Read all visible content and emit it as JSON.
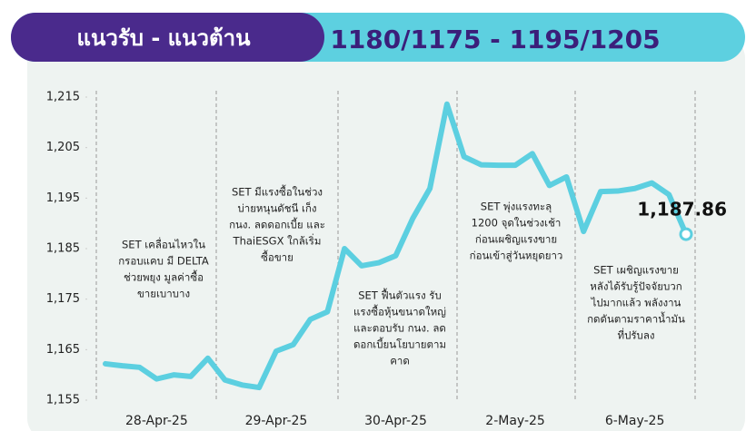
{
  "header": {
    "title": "แนวรับ - แนวต้าน",
    "levels": "1180/1175 - 1195/1205"
  },
  "chart_data": {
    "type": "line",
    "categories": [
      null,
      null,
      null,
      "28-Apr-25",
      null,
      null,
      null,
      null,
      null,
      null,
      "29-Apr-25",
      null,
      null,
      null,
      null,
      null,
      null,
      "30-Apr-25",
      null,
      null,
      null,
      null,
      null,
      null,
      "2-May-25",
      null,
      null,
      null,
      null,
      null,
      null,
      "6-May-25",
      null,
      null,
      null
    ],
    "values": [
      1162.2,
      1161.8,
      1161.5,
      1159.2,
      1160,
      1159.7,
      1163.3,
      1159,
      1158,
      1157.5,
      1164.7,
      1166,
      1171,
      1172.5,
      1185,
      1181.6,
      1182.2,
      1183.6,
      1191,
      1196.9,
      1213.6,
      1203.2,
      1201.6,
      1201.5,
      1201.5,
      1203.8,
      1197.5,
      1199.2,
      1188.4,
      1196.3,
      1196.4,
      1196.9,
      1198,
      1195.7,
      1187.86
    ],
    "value_labels": [
      null,
      null,
      null,
      null,
      null,
      null,
      null,
      null,
      null,
      null,
      null,
      null,
      null,
      null,
      null,
      null,
      null,
      null,
      null,
      null,
      null,
      null,
      null,
      null,
      null,
      null,
      null,
      null,
      null,
      null,
      null,
      null,
      null,
      null,
      "1,187.86"
    ],
    "color": "#5ccfe0",
    "ylim": [
      1155,
      1215
    ],
    "yticks": [
      {
        "value": 1155,
        "label": "1,155"
      },
      {
        "value": 1165,
        "label": "1,165"
      },
      {
        "value": 1175,
        "label": "1,175"
      },
      {
        "value": 1185,
        "label": "1,185"
      },
      {
        "value": 1195,
        "label": "1,195"
      },
      {
        "value": 1205,
        "label": "1,205"
      },
      {
        "value": 1215,
        "label": "1,215"
      }
    ],
    "grid": false,
    "annotations": [
      [
        "SET เคลื่อนไหวใน",
        "กรอบแคบ มี DELTA",
        "ช่วยพยุง มูลค่าซื้อ",
        "ขายเบาบาง"
      ],
      [
        "SET มีแรงซื้อในช่วง",
        "บ่ายหนุนดัชนี เก็ง",
        "กนง. ลดดอกเบี้ย และ",
        "ThaiESGX ใกล้เริ่ม",
        "ซื้อขาย"
      ],
      [
        "SET ฟื้นตัวแรง รับ",
        "แรงซื้อหุ้นขนาดใหญ่",
        "และตอบรับ กนง. ลด",
        "ดอกเบี้ยนโยบายตาม",
        "คาด"
      ],
      [
        "SET พุ่งแรงทะลุ",
        "1200 จุดในช่วงเช้า",
        "ก่อนเผชิญแรงขาย",
        "ก่อนเข้าสู่วันหยุดยาว"
      ],
      [
        "SET เผชิญแรงขาย",
        "หลังได้รับรู้ปัจจัยบวก",
        "ไปมากแล้ว พลังงาน",
        "กดดันตามราคาน้ำมัน",
        "ที่ปรับลง"
      ]
    ]
  }
}
